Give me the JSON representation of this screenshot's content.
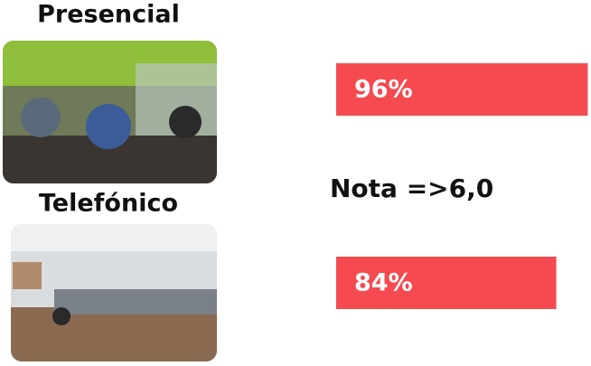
{
  "chart_data": {
    "type": "bar",
    "categories": [
      "Presencial",
      "Telefónico"
    ],
    "values": [
      96,
      84
    ],
    "value_labels": [
      "96%",
      "84%"
    ],
    "annotation": "Nota =>6,0",
    "color": "#f44a50",
    "xlim": [
      0,
      100
    ]
  }
}
